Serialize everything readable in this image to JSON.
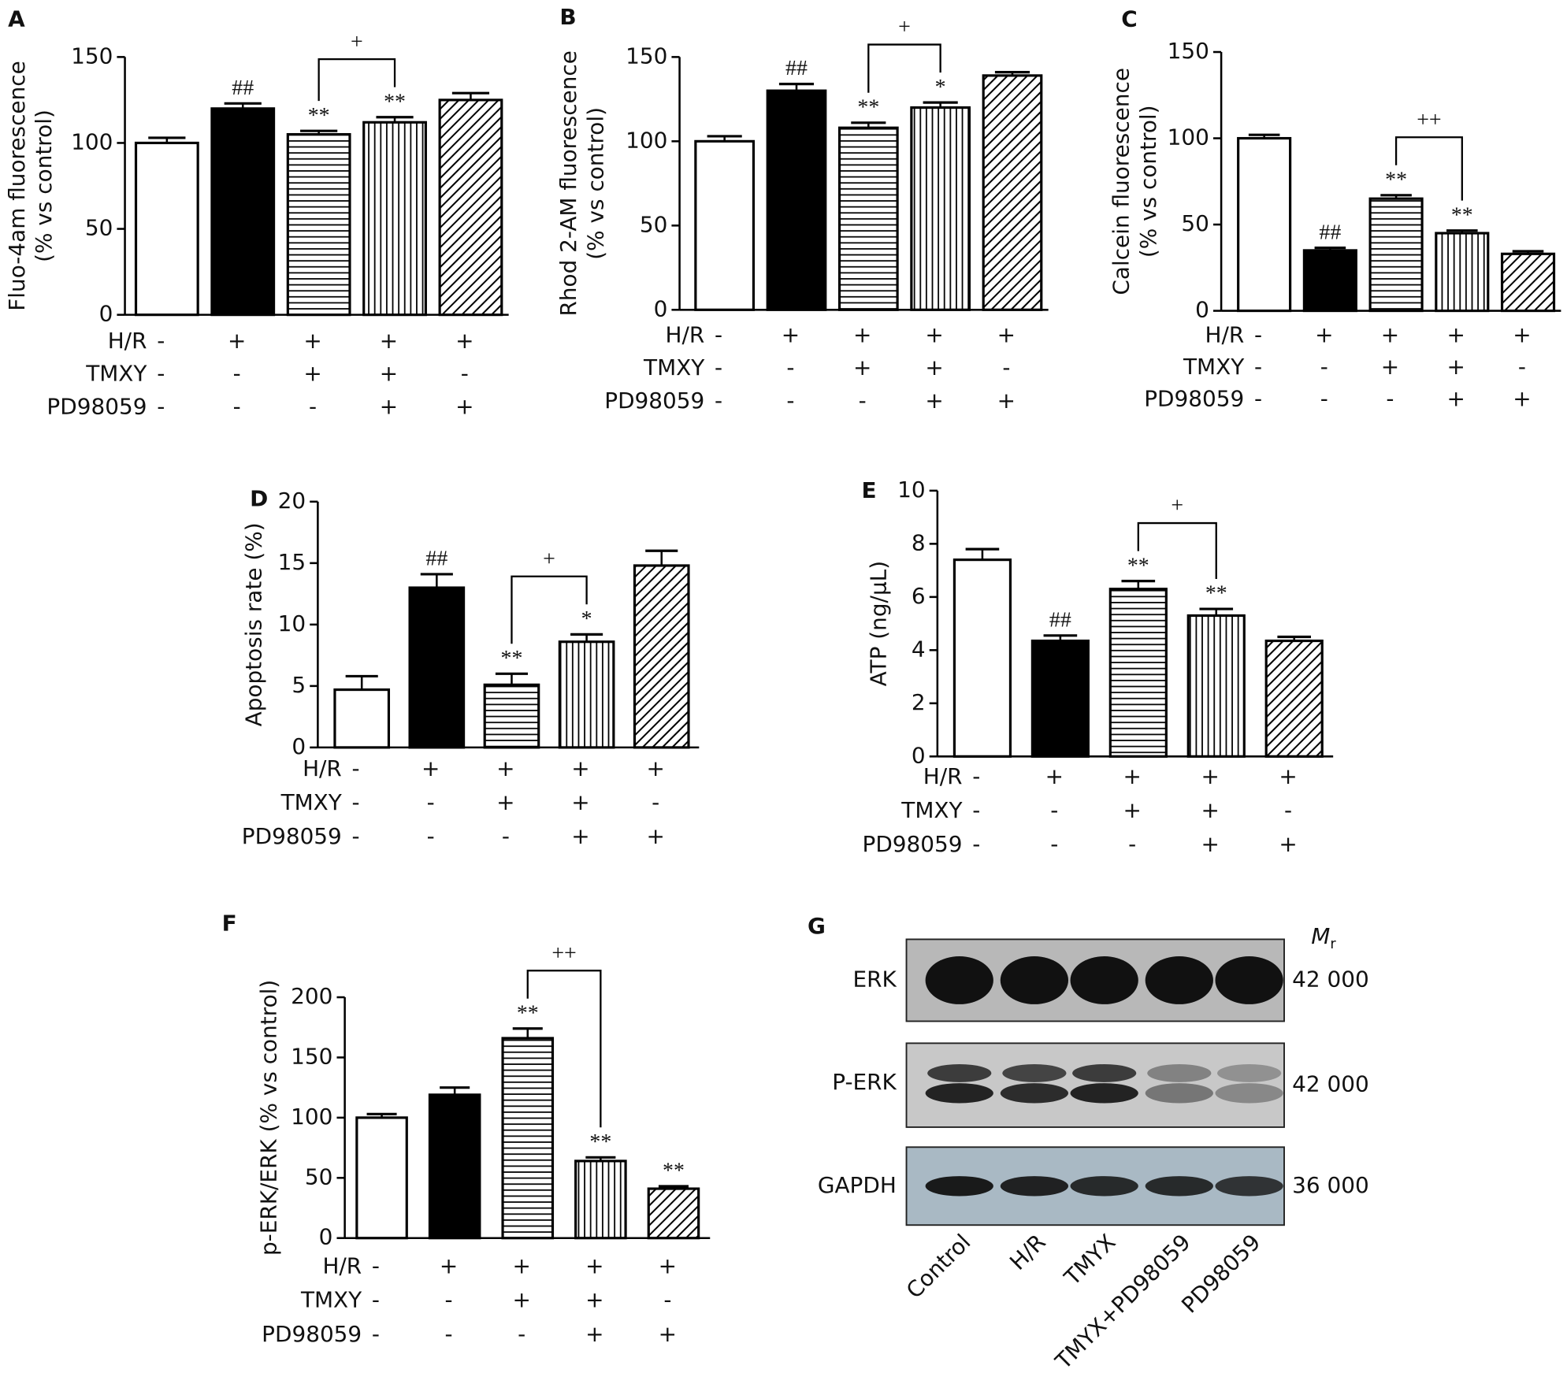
{
  "chart_data": [
    {
      "type": "bar",
      "label": "A",
      "ylabel": [
        "Fluo-4am fluorescence",
        "(% vs control)"
      ],
      "ylim": [
        0,
        150
      ],
      "yticks": [
        0,
        50,
        100,
        150
      ],
      "values": [
        100,
        120,
        105,
        112,
        125
      ],
      "errors": [
        3,
        3,
        2,
        3,
        4
      ],
      "annotations": [
        null,
        "##",
        "**",
        "**",
        null
      ],
      "bracket": {
        "from": 2,
        "to": 3,
        "label": "+"
      },
      "fills": [
        "white",
        "black",
        "horizontal",
        "vertical",
        "diagonal"
      ],
      "conditions": [
        {
          "name": "H/R",
          "signs": [
            "-",
            "+",
            "+",
            "+",
            "+"
          ]
        },
        {
          "name": "TMXY",
          "signs": [
            "-",
            "-",
            "+",
            "+",
            "-"
          ]
        },
        {
          "name": "PD98059",
          "signs": [
            "-",
            "-",
            "-",
            "+",
            "+"
          ]
        }
      ]
    },
    {
      "type": "bar",
      "label": "B",
      "ylabel": [
        "Rhod 2-AM fluorescence",
        "(% vs control)"
      ],
      "ylim": [
        0,
        150
      ],
      "yticks": [
        0,
        50,
        100,
        150
      ],
      "values": [
        100,
        130,
        108,
        120,
        139
      ],
      "errors": [
        3,
        4,
        3,
        3,
        2
      ],
      "annotations": [
        null,
        "##",
        "**",
        "*",
        null
      ],
      "bracket": {
        "from": 2,
        "to": 3,
        "label": "+"
      },
      "fills": [
        "white",
        "black",
        "horizontal",
        "vertical",
        "diagonal"
      ],
      "conditions": [
        {
          "name": "H/R",
          "signs": [
            "-",
            "+",
            "+",
            "+",
            "+"
          ]
        },
        {
          "name": "TMXY",
          "signs": [
            "-",
            "-",
            "+",
            "+",
            "-"
          ]
        },
        {
          "name": "PD98059",
          "signs": [
            "-",
            "-",
            "-",
            "+",
            "+"
          ]
        }
      ]
    },
    {
      "type": "bar",
      "label": "C",
      "ylabel": [
        "Calcein fluorescence",
        "(% vs control)"
      ],
      "ylim": [
        0,
        150
      ],
      "yticks": [
        0,
        50,
        100,
        150
      ],
      "values": [
        100,
        35,
        65,
        45,
        33
      ],
      "errors": [
        2,
        1.5,
        2,
        1.5,
        1.5
      ],
      "annotations": [
        null,
        "##",
        "**",
        "**",
        null
      ],
      "bracket": {
        "from": 2,
        "to": 3,
        "label": "++"
      },
      "fills": [
        "white",
        "black",
        "horizontal",
        "vertical",
        "diagonal"
      ],
      "conditions": [
        {
          "name": "H/R",
          "signs": [
            "-",
            "+",
            "+",
            "+",
            "+"
          ]
        },
        {
          "name": "TMXY",
          "signs": [
            "-",
            "-",
            "+",
            "+",
            "-"
          ]
        },
        {
          "name": "PD98059",
          "signs": [
            "-",
            "-",
            "-",
            "+",
            "+"
          ]
        }
      ]
    },
    {
      "type": "bar",
      "label": "D",
      "ylabel": [
        "Apoptosis rate (%)"
      ],
      "ylim": [
        0,
        20
      ],
      "yticks": [
        0,
        5,
        10,
        15,
        20
      ],
      "values": [
        4.7,
        13,
        5.1,
        8.6,
        14.8
      ],
      "errors": [
        1.1,
        1.1,
        0.9,
        0.6,
        1.2
      ],
      "annotations": [
        null,
        "##",
        "**",
        "*",
        null
      ],
      "bracket": {
        "from": 2,
        "to": 3,
        "label": "+"
      },
      "fills": [
        "white",
        "black",
        "horizontal",
        "vertical",
        "diagonal"
      ],
      "conditions": [
        {
          "name": "H/R",
          "signs": [
            "-",
            "+",
            "+",
            "+",
            "+"
          ]
        },
        {
          "name": "TMXY",
          "signs": [
            "-",
            "-",
            "+",
            "+",
            "-"
          ]
        },
        {
          "name": "PD98059",
          "signs": [
            "-",
            "-",
            "-",
            "+",
            "+"
          ]
        }
      ]
    },
    {
      "type": "bar",
      "label": "E",
      "ylabel": [
        "ATP (ng/μL)"
      ],
      "ylim": [
        0,
        10
      ],
      "yticks": [
        0,
        2,
        4,
        6,
        8,
        10
      ],
      "values": [
        7.4,
        4.35,
        6.3,
        5.3,
        4.35
      ],
      "errors": [
        0.4,
        0.2,
        0.3,
        0.25,
        0.15
      ],
      "annotations": [
        null,
        "##",
        "**",
        "**",
        null
      ],
      "bracket": {
        "from": 2,
        "to": 3,
        "label": "+"
      },
      "fills": [
        "white",
        "black",
        "horizontal",
        "vertical",
        "diagonal"
      ],
      "conditions": [
        {
          "name": "H/R",
          "signs": [
            "-",
            "+",
            "+",
            "+",
            "+"
          ]
        },
        {
          "name": "TMXY",
          "signs": [
            "-",
            "-",
            "+",
            "+",
            "-"
          ]
        },
        {
          "name": "PD98059",
          "signs": [
            "-",
            "-",
            "-",
            "+",
            "+"
          ]
        }
      ]
    },
    {
      "type": "bar",
      "label": "F",
      "ylabel": [
        "p-ERK/ERK (% vs control)"
      ],
      "ylim": [
        0,
        200
      ],
      "yticks": [
        0,
        50,
        100,
        150,
        200
      ],
      "values": [
        100,
        119,
        166,
        64,
        41
      ],
      "errors": [
        3,
        6,
        8,
        3,
        2
      ],
      "annotations": [
        null,
        null,
        "**",
        "**",
        "**"
      ],
      "bracket": {
        "from": 2,
        "to": 3,
        "label": "++"
      },
      "fills": [
        "white",
        "black",
        "horizontal",
        "vertical",
        "diagonal"
      ],
      "conditions": [
        {
          "name": "H/R",
          "signs": [
            "-",
            "+",
            "+",
            "+",
            "+"
          ]
        },
        {
          "name": "TMXY",
          "signs": [
            "-",
            "-",
            "+",
            "+",
            "-"
          ]
        },
        {
          "name": "PD98059",
          "signs": [
            "-",
            "-",
            "-",
            "+",
            "+"
          ]
        }
      ]
    }
  ],
  "blot": {
    "label": "G",
    "mr_label": {
      "main": "M",
      "sub": "r"
    },
    "rows": [
      {
        "name": "ERK",
        "mr": "42 000"
      },
      {
        "name": "P-ERK",
        "mr": "42 000"
      },
      {
        "name": "GAPDH",
        "mr": "36 000"
      }
    ],
    "lanes": [
      "Control",
      "H/R",
      "TMYX",
      "TMYX+PD98059",
      "PD98059"
    ]
  }
}
